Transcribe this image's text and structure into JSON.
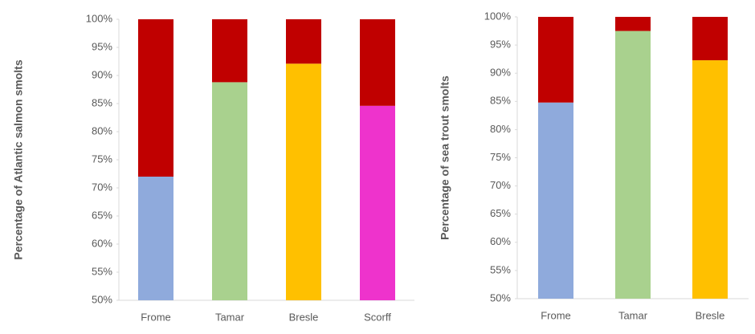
{
  "chart_data": [
    {
      "type": "bar",
      "y_label": "Percentage of Atlantic salmon smolts",
      "categories": [
        "Frome",
        "Tamar",
        "Bresle",
        "Scorff"
      ],
      "series": [
        {
          "colors": [
            "#8faadc",
            "#a9d18e",
            "#ffc000",
            "#ee33cc"
          ],
          "values": [
            72,
            88.8,
            92.1,
            84.6
          ]
        },
        {
          "color": "#c00000",
          "values": [
            28,
            11.2,
            7.9,
            15.4
          ]
        }
      ],
      "ylim": [
        50,
        100
      ],
      "yticks": [
        {
          "value": 50,
          "label": "50%"
        },
        {
          "value": 55,
          "label": "55%"
        },
        {
          "value": 60,
          "label": "60%"
        },
        {
          "value": 65,
          "label": "65%"
        },
        {
          "value": 70,
          "label": "70%"
        },
        {
          "value": 75,
          "label": "75%"
        },
        {
          "value": 80,
          "label": "80%"
        },
        {
          "value": 85,
          "label": "85%"
        },
        {
          "value": 90,
          "label": "90%"
        },
        {
          "value": 95,
          "label": "95%"
        },
        {
          "value": 100,
          "label": "100%"
        }
      ]
    },
    {
      "type": "bar",
      "y_label": "Percentage of sea trout smolts",
      "categories": [
        "Frome",
        "Tamar",
        "Bresle"
      ],
      "series": [
        {
          "colors": [
            "#8faadc",
            "#a9d18e",
            "#ffc000"
          ],
          "values": [
            84.8,
            97.5,
            92.3
          ]
        },
        {
          "color": "#c00000",
          "values": [
            15.2,
            2.5,
            7.7
          ]
        }
      ],
      "ylim": [
        50,
        100
      ],
      "yticks": [
        {
          "value": 50,
          "label": "50%"
        },
        {
          "value": 55,
          "label": "55%"
        },
        {
          "value": 60,
          "label": "60%"
        },
        {
          "value": 65,
          "label": "65%"
        },
        {
          "value": 70,
          "label": "70%"
        },
        {
          "value": 75,
          "label": "75%"
        },
        {
          "value": 80,
          "label": "80%"
        },
        {
          "value": 85,
          "label": "85%"
        },
        {
          "value": 90,
          "label": "90%"
        },
        {
          "value": 95,
          "label": "95%"
        },
        {
          "value": 100,
          "label": "100%"
        }
      ]
    }
  ]
}
